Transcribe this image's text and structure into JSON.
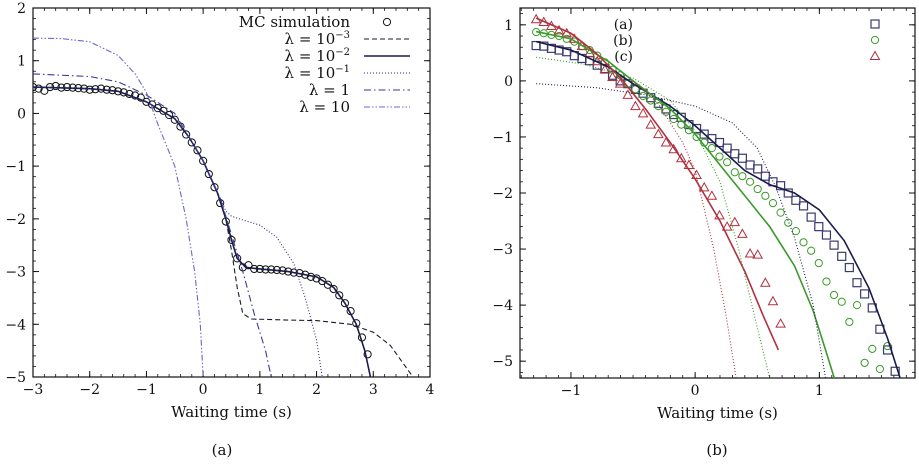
{
  "chart_data": [
    {
      "type": "line",
      "panel_label": "(a)",
      "xlabel": "Waiting time (s)",
      "ylabel": "",
      "xlim": [
        -3,
        4
      ],
      "ylim": [
        -5,
        2
      ],
      "xticks": [
        -3,
        -2,
        -1,
        0,
        1,
        2,
        3,
        4
      ],
      "yticks": [
        -5,
        -4,
        -3,
        -2,
        -1,
        0,
        1,
        2
      ],
      "grid": false,
      "legend_position": "top-right",
      "series": [
        {
          "name": "MC simulation",
          "style": "circles",
          "color": "#111111",
          "x": [
            -3,
            -2.9,
            -2.8,
            -2.7,
            -2.6,
            -2.5,
            -2.4,
            -2.3,
            -2.2,
            -2.1,
            -2,
            -1.9,
            -1.8,
            -1.7,
            -1.6,
            -1.5,
            -1.4,
            -1.3,
            -1.2,
            -1.1,
            -1,
            -0.9,
            -0.8,
            -0.7,
            -0.6,
            -0.5,
            -0.4,
            -0.3,
            -0.2,
            -0.1,
            0,
            0.1,
            0.2,
            0.3,
            0.4,
            0.5,
            0.6,
            0.7,
            0.8,
            0.9,
            1,
            1.1,
            1.2,
            1.3,
            1.4,
            1.5,
            1.6,
            1.7,
            1.8,
            1.9,
            2,
            2.1,
            2.2,
            2.3,
            2.4,
            2.5,
            2.6,
            2.7,
            2.8,
            2.9
          ],
          "y": [
            0.5,
            0.47,
            0.43,
            0.5,
            0.52,
            0.49,
            0.5,
            0.49,
            0.48,
            0.47,
            0.45,
            0.46,
            0.47,
            0.45,
            0.44,
            0.42,
            0.4,
            0.37,
            0.34,
            0.3,
            0.22,
            0.17,
            0.1,
            0.05,
            -0.03,
            -0.12,
            -0.25,
            -0.4,
            -0.55,
            -0.7,
            -0.9,
            -1.15,
            -1.4,
            -1.7,
            -2.05,
            -2.4,
            -2.75,
            -2.92,
            -2.88,
            -2.95,
            -2.95,
            -2.96,
            -2.96,
            -2.97,
            -2.98,
            -3.0,
            -3.02,
            -3.03,
            -3.06,
            -3.1,
            -3.13,
            -3.18,
            -3.25,
            -3.33,
            -3.45,
            -3.6,
            -3.75,
            -3.98,
            -4.25,
            -4.57
          ]
        },
        {
          "name": "λ = 10^-3",
          "label_base": "λ = 10",
          "label_exp": "−3",
          "style": "dashed",
          "color": "#1a1a2e",
          "x": [
            -3,
            -2,
            -1.5,
            -1,
            -0.5,
            -0.25,
            0,
            0.25,
            0.4,
            0.5,
            0.6,
            0.7,
            0.85,
            1.5,
            2,
            2.6,
            3,
            3.3,
            3.5,
            3.7
          ],
          "y": [
            0.5,
            0.47,
            0.42,
            0.22,
            -0.1,
            -0.45,
            -0.9,
            -1.5,
            -2.0,
            -2.6,
            -3.3,
            -3.8,
            -3.9,
            -3.92,
            -3.93,
            -4.0,
            -4.15,
            -4.4,
            -4.7,
            -5
          ]
        },
        {
          "name": "λ = 10^-2",
          "label_base": "λ = 10",
          "label_exp": "−2",
          "style": "solid",
          "color": "#1c1c4c",
          "x": [
            -3,
            -2,
            -1.5,
            -1,
            -0.5,
            -0.25,
            0,
            0.25,
            0.4,
            0.5,
            0.6,
            0.75,
            1,
            1.5,
            2,
            2.3,
            2.5,
            2.7,
            2.85,
            2.95
          ],
          "y": [
            0.5,
            0.47,
            0.42,
            0.22,
            -0.1,
            -0.45,
            -0.9,
            -1.5,
            -2.0,
            -2.4,
            -2.75,
            -2.92,
            -2.95,
            -3.0,
            -3.1,
            -3.3,
            -3.6,
            -4.0,
            -4.5,
            -5
          ]
        },
        {
          "name": "λ = 10^-1",
          "label_base": "λ = 10",
          "label_exp": "−1",
          "style": "dotted",
          "color": "#2a2a80",
          "x": [
            -3,
            -2,
            -1.5,
            -1,
            -0.5,
            -0.25,
            0,
            0.25,
            0.4,
            0.5,
            0.7,
            1,
            1.3,
            1.6,
            1.8,
            2.0,
            2.1
          ],
          "y": [
            0.5,
            0.47,
            0.42,
            0.22,
            -0.1,
            -0.45,
            -0.9,
            -1.5,
            -1.85,
            -1.95,
            -2.02,
            -2.12,
            -2.35,
            -2.85,
            -3.5,
            -4.3,
            -5
          ]
        },
        {
          "name": "λ = 1",
          "label_base": "λ = 1",
          "label_exp": "",
          "style": "dashdot",
          "color": "#3a3a9a",
          "x": [
            -3,
            -2,
            -1.5,
            -1,
            -0.5,
            0,
            0.3,
            0.5,
            0.7,
            0.9,
            1.1,
            1.2
          ],
          "y": [
            0.75,
            0.7,
            0.6,
            0.35,
            0.0,
            -0.9,
            -1.6,
            -2.3,
            -3.0,
            -3.8,
            -4.5,
            -5
          ]
        },
        {
          "name": "λ = 10",
          "label_base": "λ = 10",
          "label_exp": "",
          "style": "dashdotdot",
          "color": "#6a6acc",
          "x": [
            -3,
            -2.5,
            -2,
            -1.5,
            -1.2,
            -1,
            -0.8,
            -0.5,
            -0.3,
            -0.15,
            -0.05,
            0
          ],
          "y": [
            1.43,
            1.42,
            1.36,
            1.1,
            0.75,
            0.4,
            -0.2,
            -1.0,
            -2.0,
            -3.0,
            -4.0,
            -5
          ]
        }
      ]
    },
    {
      "type": "line",
      "panel_label": "(b)",
      "xlabel": "Waiting time (s)",
      "ylabel": "",
      "xlim": [
        -1.41,
        1.77
      ],
      "ylim": [
        -5.3,
        1.3
      ],
      "xticks": [
        -1,
        0,
        1
      ],
      "yticks": [
        -5,
        -4,
        -3,
        -2,
        -1,
        0,
        1
      ],
      "grid": false,
      "legend_position": "top-right",
      "series": [
        {
          "name": "(a)",
          "style": "squares",
          "color": "#3a3a6e",
          "x_start": -1.28,
          "x_step": 0.0615,
          "y": [
            0.63,
            0.62,
            0.58,
            0.55,
            0.52,
            0.45,
            0.4,
            0.36,
            0.28,
            0.22,
            0.1,
            0.0,
            -0.05,
            -0.15,
            -0.22,
            -0.3,
            -0.4,
            -0.5,
            -0.6,
            -0.65,
            -0.78,
            -0.85,
            -0.95,
            -1.03,
            -1.1,
            -1.2,
            -1.3,
            -1.38,
            -1.5,
            -1.57,
            -1.7,
            -1.8,
            -1.87,
            -2.0,
            -2.13,
            -2.23,
            -2.43,
            -2.6,
            -2.75,
            -2.93,
            -3.13,
            -3.33,
            -3.6,
            -3.8,
            -4.05,
            -4.43,
            -4.8,
            -5.18
          ]
        },
        {
          "name": "(b)",
          "style": "circles",
          "color": "#3a9a2a",
          "x_start": -1.28,
          "x_step": 0.0615,
          "y": [
            0.87,
            0.85,
            0.82,
            0.8,
            0.75,
            0.7,
            0.62,
            0.55,
            0.45,
            0.33,
            0.2,
            0.1,
            -0.05,
            -0.15,
            -0.27,
            -0.35,
            -0.45,
            -0.55,
            -0.68,
            -0.78,
            -0.88,
            -1.0,
            -1.1,
            -1.2,
            -1.35,
            -1.45,
            -1.63,
            -1.7,
            -1.8,
            -1.93,
            -2.05,
            -2.18,
            -2.35,
            -2.53,
            -2.68,
            -2.88,
            -3.03,
            -3.25,
            -3.58,
            -3.82,
            -3.94,
            -4.3,
            -4.0,
            -5.03,
            -4.78,
            -5.14,
            -4.73
          ]
        },
        {
          "name": "(c)",
          "style": "triangles",
          "color": "#b0303e",
          "x_start": -1.28,
          "x_step": 0.0615,
          "y": [
            1.1,
            1.05,
            0.98,
            0.9,
            0.85,
            0.75,
            0.62,
            0.5,
            0.35,
            0.2,
            0.07,
            -0.05,
            -0.25,
            -0.45,
            -0.58,
            -0.78,
            -0.95,
            -1.1,
            -1.22,
            -1.38,
            -1.5,
            -1.68,
            -1.9,
            -2.05,
            -2.4,
            -2.6,
            -2.52,
            -2.73,
            -3.08,
            -3.1,
            -3.6,
            -3.93,
            -4.33
          ]
        },
        {
          "style": "solid",
          "color": "#1c1c4c",
          "x": [
            -1.28,
            -1,
            -0.7,
            -0.5,
            -0.2,
            0,
            0.2,
            0.4,
            0.6,
            0.8,
            1.0,
            1.2,
            1.4,
            1.55,
            1.65
          ],
          "y": [
            0.7,
            0.55,
            0.25,
            -0.05,
            -0.45,
            -0.8,
            -1.2,
            -1.6,
            -1.85,
            -2.0,
            -2.3,
            -2.85,
            -3.7,
            -4.6,
            -5.3
          ]
        },
        {
          "style": "solid",
          "color": "#3a9a2a",
          "x": [
            -1.28,
            -1,
            -0.7,
            -0.5,
            -0.2,
            0,
            0.2,
            0.4,
            0.6,
            0.8,
            0.95,
            1.05,
            1.12
          ],
          "y": [
            0.88,
            0.75,
            0.35,
            0.0,
            -0.5,
            -0.95,
            -1.5,
            -2.05,
            -2.6,
            -3.3,
            -4.1,
            -4.8,
            -5.3
          ]
        },
        {
          "style": "solid",
          "color": "#b0303e",
          "x": [
            -1.28,
            -1,
            -0.8,
            -0.6,
            -0.4,
            -0.2,
            0,
            0.2,
            0.4,
            0.55,
            0.67
          ],
          "y": [
            1.12,
            0.85,
            0.5,
            0.05,
            -0.5,
            -1.1,
            -1.75,
            -2.5,
            -3.4,
            -4.2,
            -4.8
          ]
        },
        {
          "style": "dotted",
          "color": "#1c1c4c",
          "x": [
            -1.28,
            -0.8,
            -0.4,
            0,
            0.3,
            0.5,
            0.65,
            0.8,
            0.95,
            1.05
          ],
          "y": [
            -0.05,
            -0.12,
            -0.25,
            -0.45,
            -0.75,
            -1.2,
            -1.9,
            -2.8,
            -4.0,
            -5.3
          ]
        },
        {
          "style": "dotted",
          "color": "#3a9a2a",
          "x": [
            -1.28,
            -0.9,
            -0.5,
            -0.2,
            0,
            0.2,
            0.35,
            0.5,
            0.6
          ],
          "y": [
            0.42,
            0.3,
            0.05,
            -0.35,
            -0.9,
            -1.8,
            -3.0,
            -4.4,
            -5.3
          ]
        },
        {
          "style": "dotted",
          "color": "#b0303e",
          "x": [
            -0.5,
            -0.3,
            -0.1,
            0,
            0.15,
            0.25,
            0.33
          ],
          "y": [
            0.0,
            -0.4,
            -1.1,
            -1.6,
            -3.0,
            -4.2,
            -5.3
          ]
        }
      ]
    }
  ]
}
